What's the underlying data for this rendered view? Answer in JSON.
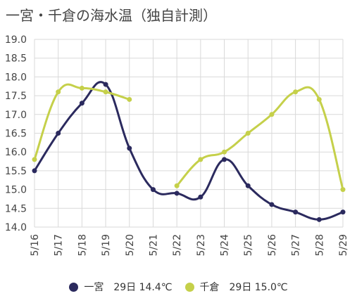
{
  "title": "一宮・千倉の海水温（独自計測）",
  "chart_data": {
    "type": "line",
    "categories": [
      "5/16",
      "5/17",
      "5/18",
      "5/19",
      "5/20",
      "5/21",
      "5/22",
      "5/23",
      "5/24",
      "5/25",
      "5/26",
      "5/27",
      "5/28",
      "5/29"
    ],
    "ylim": [
      14.0,
      19.0
    ],
    "yticks": [
      "19.0",
      "18.5",
      "18.0",
      "17.5",
      "17.0",
      "16.5",
      "16.0",
      "15.5",
      "15.0",
      "14.5",
      "14.0"
    ],
    "grid": true,
    "legend_position": "bottom",
    "series": [
      {
        "name": "一宮",
        "color": "#2b2a5e",
        "values": [
          15.5,
          16.5,
          17.3,
          17.8,
          16.1,
          15.0,
          14.9,
          14.8,
          15.8,
          15.1,
          14.6,
          14.4,
          14.2,
          14.4
        ]
      },
      {
        "name": "千倉",
        "color": "#c5d04a",
        "values": [
          15.8,
          17.6,
          17.7,
          17.6,
          17.4,
          null,
          15.1,
          15.8,
          16.0,
          16.5,
          17.0,
          17.6,
          17.4,
          15.0
        ]
      }
    ]
  },
  "legend": {
    "items": [
      {
        "name": "一宮",
        "latest": "29日 14.4℃",
        "color": "#2b2a5e"
      },
      {
        "name": "千倉",
        "latest": "29日 15.0℃",
        "color": "#c5d04a"
      }
    ]
  }
}
